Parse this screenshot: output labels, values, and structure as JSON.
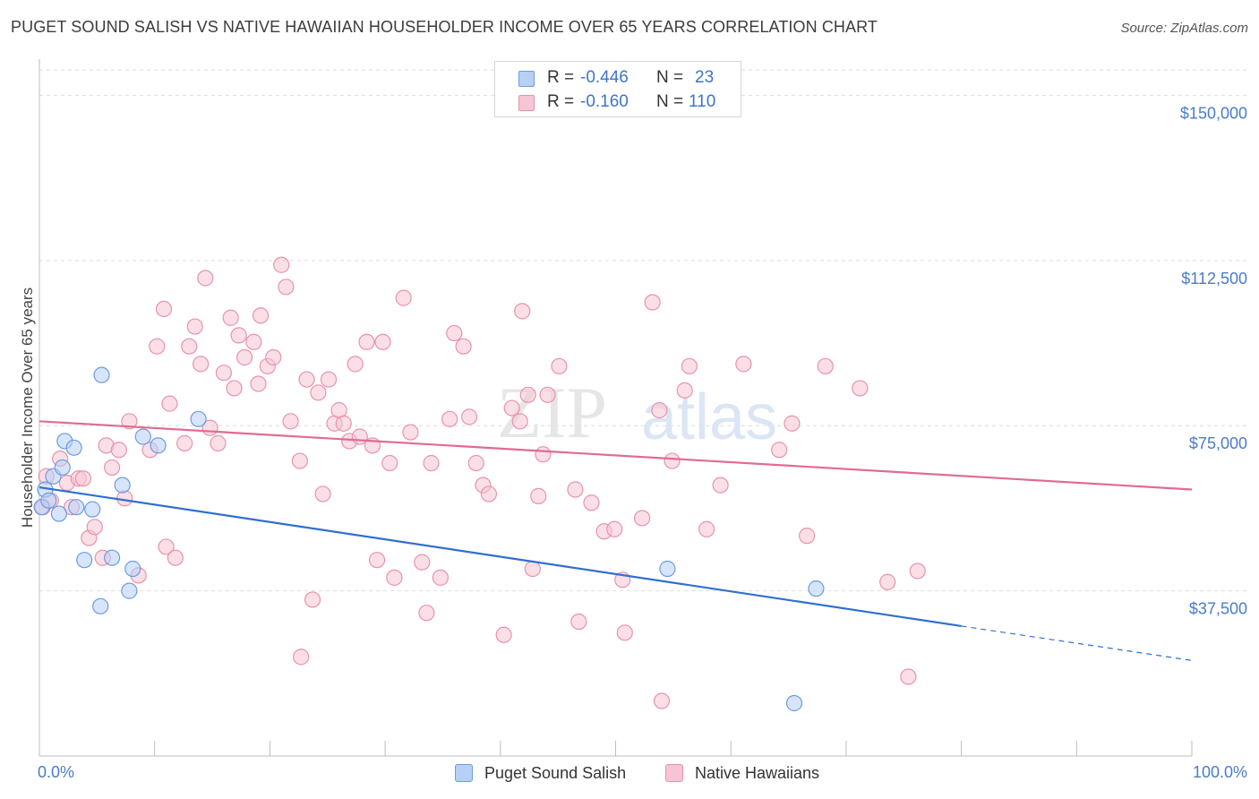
{
  "header": {
    "title": "PUGET SOUND SALISH VS NATIVE HAWAIIAN HOUSEHOLDER INCOME OVER 65 YEARS CORRELATION CHART",
    "source": "Source: ZipAtlas.com"
  },
  "stats": {
    "rows": [
      {
        "r_label": "R =",
        "r_value": "-0.446",
        "n_label": "N =",
        "n_value": "23",
        "color": "#b7d0f5"
      },
      {
        "r_label": "R =",
        "r_value": "-0.160",
        "n_label": "N =",
        "n_value": "110",
        "color": "#f7c4d3"
      }
    ]
  },
  "legend": {
    "items": [
      {
        "label": "Puget Sound Salish",
        "color": "#b7d0f5"
      },
      {
        "label": "Native Hawaiians",
        "color": "#f7c4d3"
      }
    ]
  },
  "watermark": {
    "zip": "ZIP",
    "atlas": "atlas"
  },
  "colors": {
    "blue_stroke": "#6f9be0",
    "blue_fill": "#b7d0f5",
    "blue_line": "#2f6fcf",
    "pink_stroke": "#e892ad",
    "pink_fill": "#f7c4d3",
    "pink_line": "#e06b93",
    "axis_label": "#4a7cc9"
  },
  "chart_data": {
    "type": "scatter",
    "title": "PUGET SOUND SALISH VS NATIVE HAWAIIAN HOUSEHOLDER INCOME OVER 65 YEARS CORRELATION CHART",
    "xlabel": "",
    "ylabel": "Householder Income Over 65 years",
    "xlim": [
      0,
      100
    ],
    "ylim": [
      0,
      157000
    ],
    "x_tick_labels": {
      "left": "0.0%",
      "right": "100.0%"
    },
    "y_ticks": [
      {
        "value": 37500,
        "label": "$37,500"
      },
      {
        "value": 75000,
        "label": "$75,000"
      },
      {
        "value": 112500,
        "label": "$112,500"
      },
      {
        "value": 150000,
        "label": "$150,000"
      }
    ],
    "series": [
      {
        "name": "Puget Sound Salish",
        "color": "blue",
        "points": [
          [
            0.2,
            56500
          ],
          [
            0.5,
            60500
          ],
          [
            0.8,
            58000
          ],
          [
            1.2,
            63500
          ],
          [
            1.7,
            55000
          ],
          [
            2.0,
            65500
          ],
          [
            2.2,
            71500
          ],
          [
            3.0,
            70000
          ],
          [
            3.2,
            56500
          ],
          [
            3.9,
            44500
          ],
          [
            4.6,
            56000
          ],
          [
            5.3,
            34000
          ],
          [
            6.3,
            45000
          ],
          [
            7.2,
            61500
          ],
          [
            7.8,
            37500
          ],
          [
            8.1,
            42500
          ],
          [
            9.0,
            72500
          ],
          [
            10.3,
            70500
          ],
          [
            13.8,
            76500
          ],
          [
            5.4,
            86500
          ],
          [
            54.5,
            42500
          ],
          [
            67.4,
            38000
          ],
          [
            65.5,
            12000
          ]
        ],
        "trend": {
          "x0": 0,
          "y0": 61000,
          "x1": 80,
          "y1": 29500,
          "dash_to_x": 100,
          "dash_to_y": 21700
        }
      },
      {
        "name": "Native Hawaiians",
        "color": "pink",
        "points": [
          [
            0.3,
            56500
          ],
          [
            0.6,
            63500
          ],
          [
            1.0,
            58000
          ],
          [
            1.8,
            67500
          ],
          [
            2.4,
            62000
          ],
          [
            2.8,
            56500
          ],
          [
            3.4,
            63000
          ],
          [
            3.8,
            63000
          ],
          [
            4.3,
            49500
          ],
          [
            4.8,
            52000
          ],
          [
            5.5,
            45000
          ],
          [
            5.8,
            70500
          ],
          [
            6.3,
            65500
          ],
          [
            6.9,
            69500
          ],
          [
            7.4,
            58500
          ],
          [
            7.8,
            76000
          ],
          [
            8.6,
            41000
          ],
          [
            9.6,
            69500
          ],
          [
            10.2,
            93000
          ],
          [
            10.8,
            101500
          ],
          [
            11.0,
            47500
          ],
          [
            11.3,
            80000
          ],
          [
            11.8,
            45000
          ],
          [
            12.6,
            71000
          ],
          [
            13.0,
            93000
          ],
          [
            13.5,
            97500
          ],
          [
            14.0,
            89000
          ],
          [
            14.4,
            108500
          ],
          [
            14.8,
            74500
          ],
          [
            15.5,
            71000
          ],
          [
            16.0,
            87000
          ],
          [
            16.6,
            99500
          ],
          [
            16.9,
            83500
          ],
          [
            17.3,
            95500
          ],
          [
            17.8,
            90500
          ],
          [
            18.6,
            94000
          ],
          [
            19.0,
            84500
          ],
          [
            19.2,
            100000
          ],
          [
            19.8,
            88500
          ],
          [
            20.3,
            90500
          ],
          [
            21.0,
            111500
          ],
          [
            21.4,
            106500
          ],
          [
            21.8,
            76000
          ],
          [
            22.6,
            67000
          ],
          [
            23.2,
            85500
          ],
          [
            23.7,
            35500
          ],
          [
            24.2,
            82500
          ],
          [
            24.6,
            59500
          ],
          [
            25.1,
            85500
          ],
          [
            25.6,
            75500
          ],
          [
            26.0,
            78500
          ],
          [
            26.4,
            75500
          ],
          [
            26.9,
            71500
          ],
          [
            27.4,
            89000
          ],
          [
            27.8,
            72500
          ],
          [
            28.4,
            94000
          ],
          [
            28.9,
            70500
          ],
          [
            29.3,
            44500
          ],
          [
            29.8,
            94000
          ],
          [
            30.4,
            66500
          ],
          [
            30.8,
            40500
          ],
          [
            31.6,
            104000
          ],
          [
            32.2,
            73500
          ],
          [
            33.2,
            44000
          ],
          [
            33.6,
            32500
          ],
          [
            34.0,
            66500
          ],
          [
            34.8,
            40500
          ],
          [
            35.6,
            76500
          ],
          [
            36.0,
            96000
          ],
          [
            36.8,
            93000
          ],
          [
            37.3,
            77000
          ],
          [
            37.9,
            66500
          ],
          [
            38.5,
            61500
          ],
          [
            39.0,
            59500
          ],
          [
            40.3,
            27500
          ],
          [
            41.0,
            79000
          ],
          [
            41.7,
            76000
          ],
          [
            41.9,
            101000
          ],
          [
            42.4,
            82000
          ],
          [
            42.8,
            42500
          ],
          [
            43.3,
            59000
          ],
          [
            43.7,
            68500
          ],
          [
            44.1,
            82000
          ],
          [
            45.1,
            88500
          ],
          [
            46.5,
            60500
          ],
          [
            46.8,
            30500
          ],
          [
            47.9,
            57500
          ],
          [
            49.0,
            51000
          ],
          [
            49.9,
            51500
          ],
          [
            50.6,
            40000
          ],
          [
            52.3,
            54000
          ],
          [
            53.2,
            103000
          ],
          [
            53.8,
            78500
          ],
          [
            54.9,
            67000
          ],
          [
            56.0,
            83000
          ],
          [
            56.4,
            88500
          ],
          [
            57.9,
            51500
          ],
          [
            59.1,
            61500
          ],
          [
            61.1,
            89000
          ],
          [
            64.2,
            69500
          ],
          [
            65.3,
            75500
          ],
          [
            68.2,
            88500
          ],
          [
            71.2,
            83500
          ],
          [
            73.6,
            39500
          ],
          [
            76.2,
            42000
          ],
          [
            50.8,
            28000
          ],
          [
            66.6,
            50000
          ],
          [
            22.7,
            22500
          ],
          [
            75.4,
            18000
          ],
          [
            54.0,
            12500
          ]
        ],
        "trend": {
          "x0": 0,
          "y0": 76000,
          "x1": 100,
          "y1": 60500
        }
      }
    ]
  }
}
